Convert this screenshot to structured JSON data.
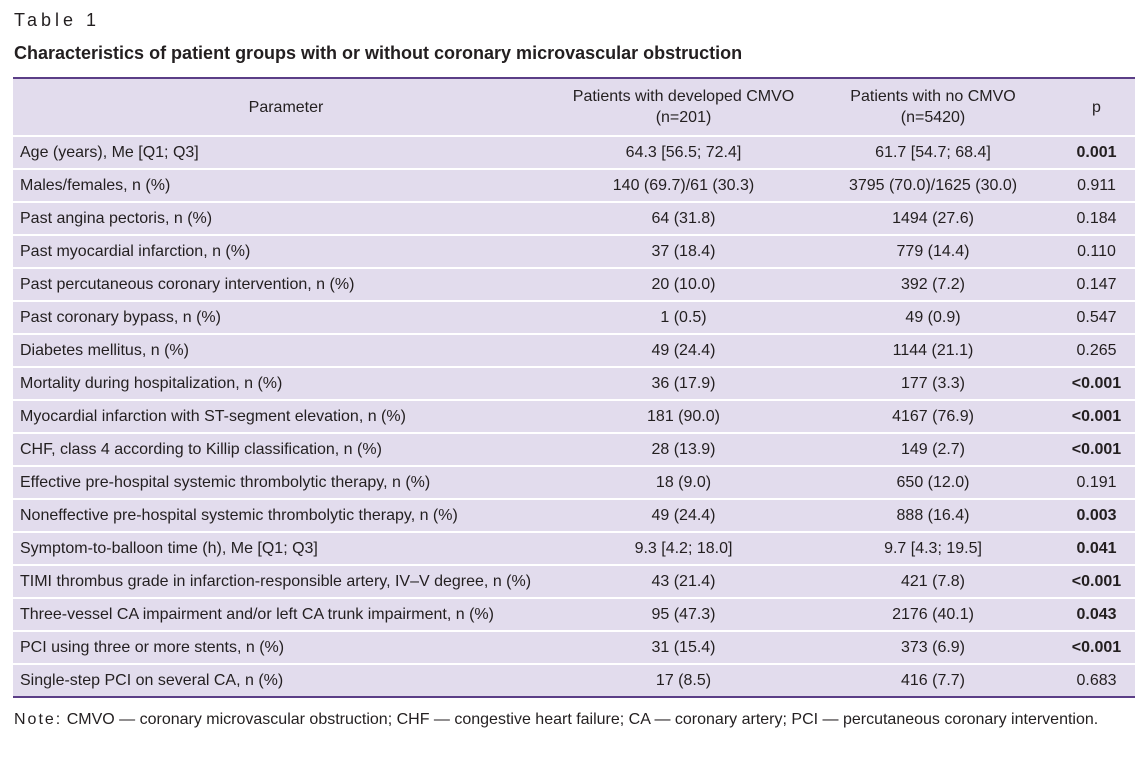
{
  "table_label": "Table 1",
  "title": "Characteristics of patient groups with or without coronary microvascular obstruction",
  "headers": {
    "parameter": "Parameter",
    "group1_line1": "Patients with developed CMVO",
    "group1_line2": "(n=201)",
    "group2_line1": "Patients with no CMVO",
    "group2_line2": "(n=5420)",
    "p": "p"
  },
  "rows": [
    {
      "param": "Age (years), Me [Q1; Q3]",
      "cmvo": "64.3 [56.5; 72.4]",
      "no_cmvo": "61.7 [54.7; 68.4]",
      "p": "0.001",
      "significant": true
    },
    {
      "param": "Males/females, n (%)",
      "cmvo": "140 (69.7)/61 (30.3)",
      "no_cmvo": "3795 (70.0)/1625 (30.0)",
      "p": "0.911",
      "significant": false
    },
    {
      "param": "Past angina pectoris, n (%)",
      "cmvo": "64 (31.8)",
      "no_cmvo": "1494 (27.6)",
      "p": "0.184",
      "significant": false
    },
    {
      "param": "Past myocardial infarction, n (%)",
      "cmvo": "37 (18.4)",
      "no_cmvo": "779 (14.4)",
      "p": "0.110",
      "significant": false
    },
    {
      "param": "Past percutaneous coronary intervention, n (%)",
      "cmvo": "20 (10.0)",
      "no_cmvo": "392 (7.2)",
      "p": "0.147",
      "significant": false
    },
    {
      "param": "Past coronary bypass, n (%)",
      "cmvo": "1 (0.5)",
      "no_cmvo": "49 (0.9)",
      "p": "0.547",
      "significant": false
    },
    {
      "param": "Diabetes mellitus, n (%)",
      "cmvo": "49 (24.4)",
      "no_cmvo": "1144 (21.1)",
      "p": "0.265",
      "significant": false
    },
    {
      "param": "Mortality during hospitalization, n (%)",
      "cmvo": "36 (17.9)",
      "no_cmvo": "177 (3.3)",
      "p": "<0.001",
      "significant": true
    },
    {
      "param": "Myocardial infarction with ST-segment elevation, n (%)",
      "cmvo": "181 (90.0)",
      "no_cmvo": "4167 (76.9)",
      "p": "<0.001",
      "significant": true
    },
    {
      "param": "CHF, class 4 according to Killip classification, n (%)",
      "cmvo": "28 (13.9)",
      "no_cmvo": "149 (2.7)",
      "p": "<0.001",
      "significant": true
    },
    {
      "param": "Effective pre-hospital systemic thrombolytic therapy, n (%)",
      "cmvo": "18 (9.0)",
      "no_cmvo": "650 (12.0)",
      "p": "0.191",
      "significant": false
    },
    {
      "param": "Noneffective pre-hospital systemic thrombolytic therapy, n (%)",
      "cmvo": "49 (24.4)",
      "no_cmvo": "888 (16.4)",
      "p": "0.003",
      "significant": true
    },
    {
      "param": "Symptom-to-balloon time (h), Me [Q1; Q3]",
      "cmvo": "9.3 [4.2; 18.0]",
      "no_cmvo": "9.7 [4.3; 19.5]",
      "p": "0.041",
      "significant": true
    },
    {
      "param": "TIMI thrombus grade in infarction-responsible artery, IV–V degree, n (%)",
      "cmvo": "43 (21.4)",
      "no_cmvo": "421 (7.8)",
      "p": "<0.001",
      "significant": true
    },
    {
      "param": "Three-vessel CA impairment and/or left CA trunk impairment, n (%)",
      "cmvo": "95 (47.3)",
      "no_cmvo": "2176 (40.1)",
      "p": "0.043",
      "significant": true
    },
    {
      "param": "PCI using three or more stents, n (%)",
      "cmvo": "31 (15.4)",
      "no_cmvo": "373 (6.9)",
      "p": "<0.001",
      "significant": true
    },
    {
      "param": "Single-step PCI on several CA, n (%)",
      "cmvo": "17 (8.5)",
      "no_cmvo": "416 (7.7)",
      "p": "0.683",
      "significant": false
    }
  ],
  "note": {
    "label": "Note:",
    "text": "CMVO — coronary microvascular obstruction; CHF — congestive heart failure; CA — coronary artery; PCI — percutaneous coronary intervention."
  },
  "colors": {
    "table_fill": "#e2dced",
    "rule": "#5b3e87",
    "text": "#231f20"
  }
}
